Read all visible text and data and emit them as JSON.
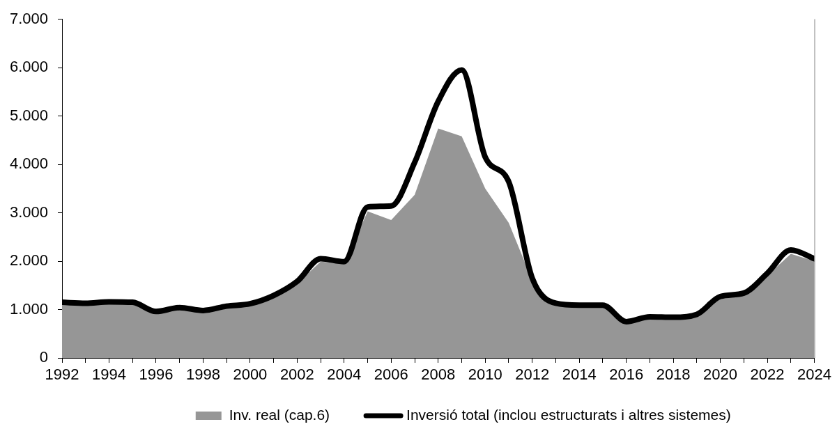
{
  "chart_data": {
    "type": "area",
    "x": [
      1992,
      1993,
      1994,
      1995,
      1996,
      1997,
      1998,
      1999,
      2000,
      2001,
      2002,
      2003,
      2004,
      2005,
      2006,
      2007,
      2008,
      2009,
      2010,
      2011,
      2012,
      2013,
      2014,
      2015,
      2016,
      2017,
      2018,
      2019,
      2020,
      2021,
      2022,
      2023,
      2024
    ],
    "series": [
      {
        "name": "Inv. real (cap.6)",
        "type": "area",
        "color": "#969696",
        "values": [
          1100,
          1100,
          1120,
          1110,
          930,
          1000,
          950,
          1040,
          1080,
          1250,
          1540,
          1990,
          1950,
          3030,
          2850,
          3370,
          4740,
          4580,
          3500,
          2790,
          1600,
          1080,
          1060,
          1060,
          730,
          820,
          810,
          870,
          1230,
          1300,
          1700,
          2150,
          2000
        ]
      },
      {
        "name": "Inversió total (inclou estructurats i altres sistemes)",
        "type": "line",
        "color": "#000000",
        "values": [
          1150,
          1130,
          1160,
          1150,
          960,
          1040,
          980,
          1070,
          1120,
          1290,
          1580,
          2050,
          1990,
          3120,
          3140,
          4040,
          5300,
          5950,
          4150,
          3640,
          1650,
          1130,
          1090,
          1090,
          750,
          850,
          840,
          900,
          1270,
          1340,
          1750,
          2230,
          2050
        ]
      }
    ],
    "xlim": [
      1992,
      2024
    ],
    "xticks": [
      1992,
      {
        "value": 1993,
        "label": null
      },
      1994,
      {
        "value": 1995,
        "label": null
      },
      1996,
      {
        "value": 1997,
        "label": null
      },
      1998,
      {
        "value": 1999,
        "label": null
      },
      2000,
      {
        "value": 2001,
        "label": null
      },
      2002,
      {
        "value": 2003,
        "label": null
      },
      2004,
      {
        "value": 2005,
        "label": null
      },
      2006,
      {
        "value": 2007,
        "label": null
      },
      2008,
      {
        "value": 2009,
        "label": null
      },
      2010,
      {
        "value": 2011,
        "label": null
      },
      2012,
      {
        "value": 2013,
        "label": null
      },
      2014,
      {
        "value": 2015,
        "label": null
      },
      2016,
      {
        "value": 2017,
        "label": null
      },
      2018,
      {
        "value": 2019,
        "label": null
      },
      2020,
      {
        "value": 2021,
        "label": null
      },
      2022,
      {
        "value": 2023,
        "label": null
      },
      2024
    ],
    "ylim": [
      0,
      7000
    ],
    "yticks": [
      0,
      {
        "value": 1000,
        "label": "1.000"
      },
      {
        "value": 2000,
        "label": "2.000"
      },
      {
        "value": 3000,
        "label": "3.000"
      },
      {
        "value": 4000,
        "label": "4.000"
      },
      {
        "value": 5000,
        "label": "5.000"
      },
      {
        "value": 6000,
        "label": "6.000"
      },
      {
        "value": 7000,
        "label": "7.000"
      }
    ],
    "grid": false,
    "legend": "bottom"
  }
}
